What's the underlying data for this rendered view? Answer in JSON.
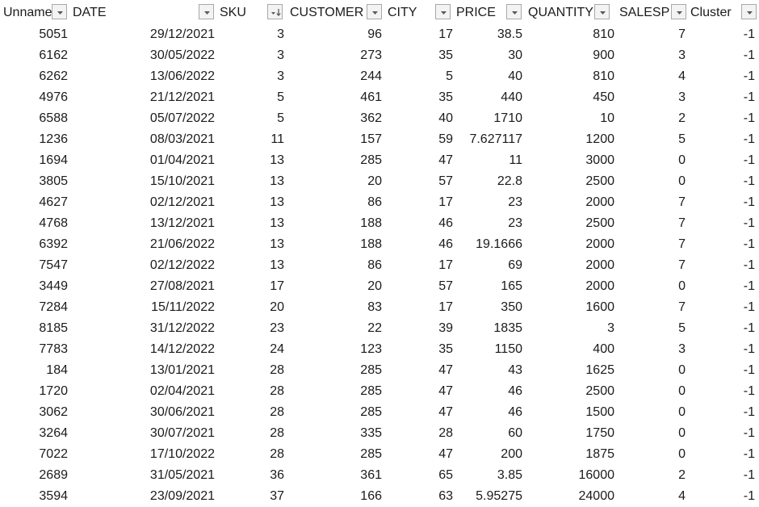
{
  "columns": [
    {
      "key": "unnamed",
      "label": "Unnamed"
    },
    {
      "key": "date",
      "label": "DATE"
    },
    {
      "key": "sku",
      "label": "SKU"
    },
    {
      "key": "customer",
      "label": "CUSTOMER"
    },
    {
      "key": "city",
      "label": "CITY"
    },
    {
      "key": "price",
      "label": "PRICE"
    },
    {
      "key": "quantity",
      "label": "QUANTITY"
    },
    {
      "key": "salesperson",
      "label": "SALESP"
    },
    {
      "key": "cluster",
      "label": "Cluster"
    }
  ],
  "filter_icons": [
    "dropdown-icon",
    "dropdown-icon",
    "sort-ascending-filter-icon",
    "dropdown-icon",
    "dropdown-icon",
    "dropdown-icon",
    "dropdown-icon",
    "dropdown-icon",
    "dropdown-icon"
  ],
  "rows": [
    [
      "5051",
      "29/12/2021",
      "3",
      "96",
      "17",
      "38.5",
      "810",
      "7",
      "-1"
    ],
    [
      "6162",
      "30/05/2022",
      "3",
      "273",
      "35",
      "30",
      "900",
      "3",
      "-1"
    ],
    [
      "6262",
      "13/06/2022",
      "3",
      "244",
      "5",
      "40",
      "810",
      "4",
      "-1"
    ],
    [
      "4976",
      "21/12/2021",
      "5",
      "461",
      "35",
      "440",
      "450",
      "3",
      "-1"
    ],
    [
      "6588",
      "05/07/2022",
      "5",
      "362",
      "40",
      "1710",
      "10",
      "2",
      "-1"
    ],
    [
      "1236",
      "08/03/2021",
      "11",
      "157",
      "59",
      "7.627117",
      "1200",
      "5",
      "-1"
    ],
    [
      "1694",
      "01/04/2021",
      "13",
      "285",
      "47",
      "11",
      "3000",
      "0",
      "-1"
    ],
    [
      "3805",
      "15/10/2021",
      "13",
      "20",
      "57",
      "22.8",
      "2500",
      "0",
      "-1"
    ],
    [
      "4627",
      "02/12/2021",
      "13",
      "86",
      "17",
      "23",
      "2000",
      "7",
      "-1"
    ],
    [
      "4768",
      "13/12/2021",
      "13",
      "188",
      "46",
      "23",
      "2500",
      "7",
      "-1"
    ],
    [
      "6392",
      "21/06/2022",
      "13",
      "188",
      "46",
      "19.1666",
      "2000",
      "7",
      "-1"
    ],
    [
      "7547",
      "02/12/2022",
      "13",
      "86",
      "17",
      "69",
      "2000",
      "7",
      "-1"
    ],
    [
      "3449",
      "27/08/2021",
      "17",
      "20",
      "57",
      "165",
      "2000",
      "0",
      "-1"
    ],
    [
      "7284",
      "15/11/2022",
      "20",
      "83",
      "17",
      "350",
      "1600",
      "7",
      "-1"
    ],
    [
      "8185",
      "31/12/2022",
      "23",
      "22",
      "39",
      "1835",
      "3",
      "5",
      "-1"
    ],
    [
      "7783",
      "14/12/2022",
      "24",
      "123",
      "35",
      "1150",
      "400",
      "3",
      "-1"
    ],
    [
      "184",
      "13/01/2021",
      "28",
      "285",
      "47",
      "43",
      "1625",
      "0",
      "-1"
    ],
    [
      "1720",
      "02/04/2021",
      "28",
      "285",
      "47",
      "46",
      "2500",
      "0",
      "-1"
    ],
    [
      "3062",
      "30/06/2021",
      "28",
      "285",
      "47",
      "46",
      "1500",
      "0",
      "-1"
    ],
    [
      "3264",
      "30/07/2021",
      "28",
      "335",
      "28",
      "60",
      "1750",
      "0",
      "-1"
    ],
    [
      "7022",
      "17/10/2022",
      "28",
      "285",
      "47",
      "200",
      "1875",
      "0",
      "-1"
    ],
    [
      "2689",
      "31/05/2021",
      "36",
      "361",
      "65",
      "3.85",
      "16000",
      "2",
      "-1"
    ],
    [
      "3594",
      "23/09/2021",
      "37",
      "166",
      "63",
      "5.95275",
      "24000",
      "4",
      "-1"
    ]
  ]
}
